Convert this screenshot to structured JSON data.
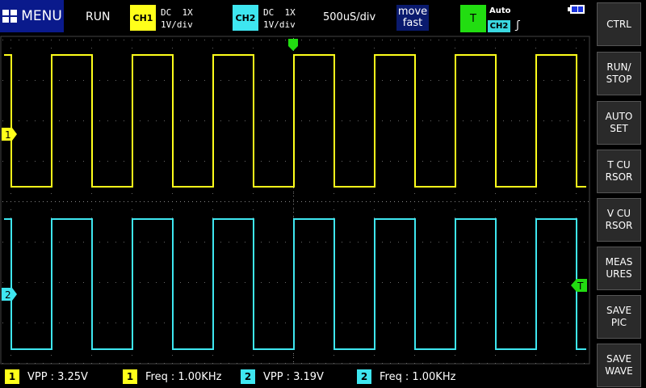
{
  "menu": {
    "label": "MENU",
    "icon": "grid-icon"
  },
  "status": "RUN",
  "ch1": {
    "badge": "CH1",
    "coupling": "DC  1X",
    "scale": "1V/div",
    "color": "#ffff1a"
  },
  "ch2": {
    "badge": "CH2",
    "coupling": "DC  1X",
    "scale": "1V/div",
    "color": "#3ee6f0"
  },
  "timebase": "500uS/div",
  "move": {
    "line1": "move",
    "line2": "fast"
  },
  "trigger": {
    "badge": "T",
    "mode": "Auto",
    "source": "CH2",
    "edge": "ʃ",
    "color": "#22dd11"
  },
  "side_buttons": [
    "CTRL",
    "RUN/\nSTOP",
    "AUTO\nSET",
    "T CU\nRSOR",
    "V CU\nRSOR",
    "MEAS\nURES",
    "SAVE\nPIC",
    "SAVE\nWAVE"
  ],
  "markers": {
    "ch1": "1",
    "ch2": "2",
    "trigger": "T"
  },
  "measurements": [
    {
      "channel": "1",
      "label": "VPP",
      "value": ": 3.25V",
      "color": "#ffff1a"
    },
    {
      "channel": "1",
      "label": "Freq",
      "value": ": 1.00KHz",
      "color": "#ffff1a"
    },
    {
      "channel": "2",
      "label": "VPP",
      "value": ": 3.19V",
      "color": "#3ee6f0"
    },
    {
      "channel": "2",
      "label": "Freq",
      "value": ": 1.00KHz",
      "color": "#3ee6f0"
    }
  ],
  "waveform": {
    "frequency_khz": 1.0,
    "timebase_us_per_div": 500
  }
}
